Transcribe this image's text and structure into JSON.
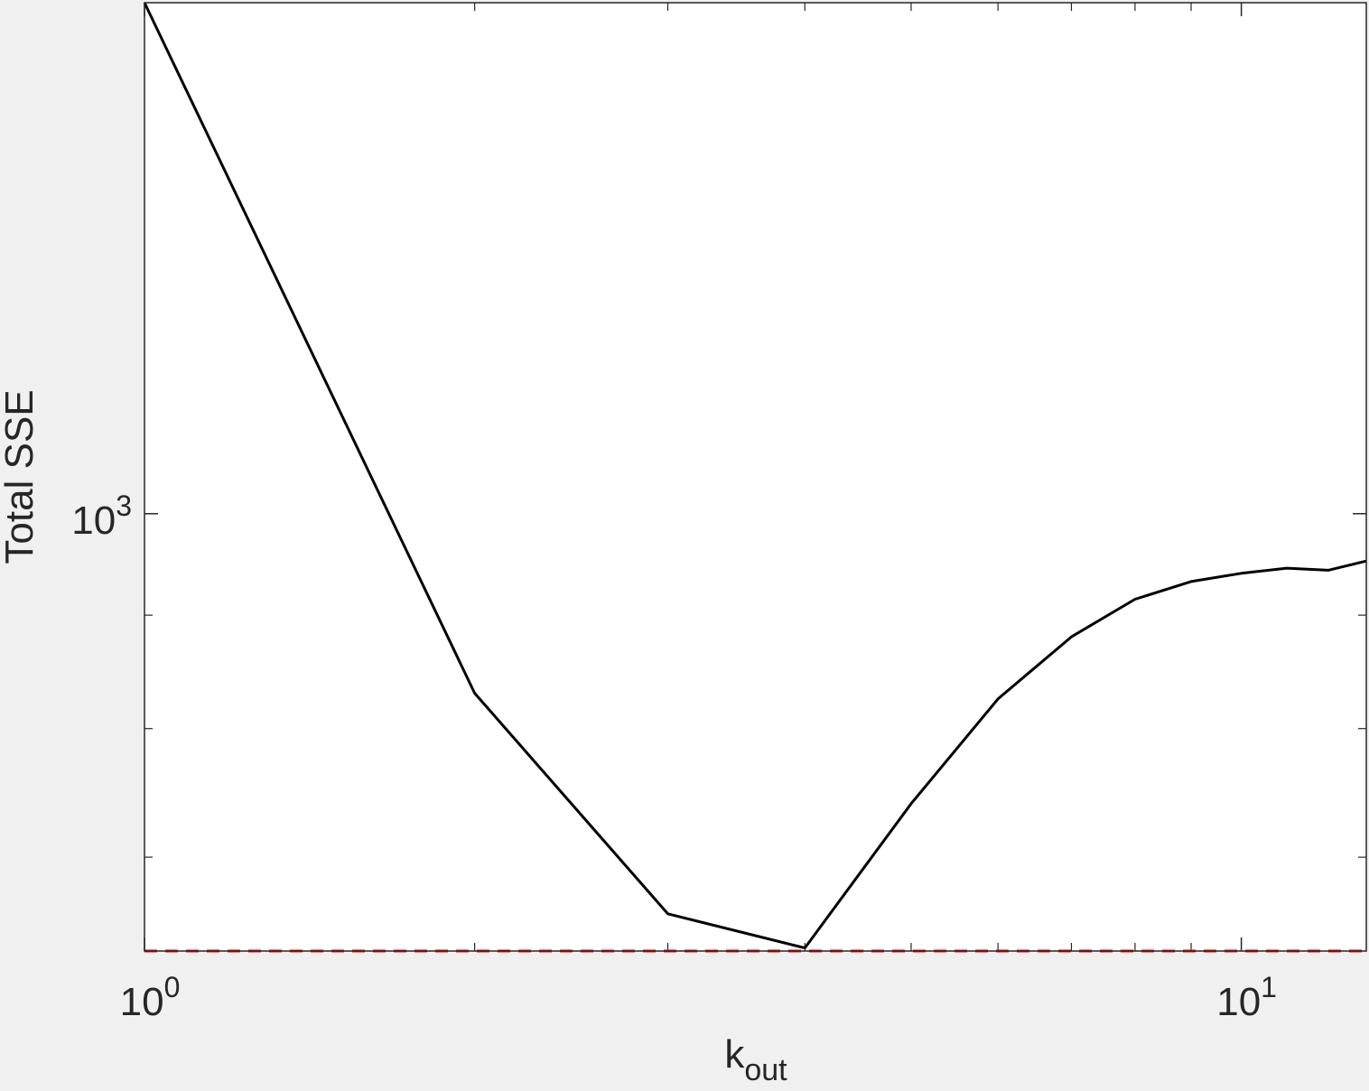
{
  "chart_data": {
    "type": "line",
    "title": "",
    "xlabel": "k",
    "xlabel_subscript": "out",
    "ylabel": "Total SSE",
    "x_scale": "log",
    "y_scale": "log",
    "xlim": [
      1,
      13
    ],
    "ylim": [
      635,
      1700
    ],
    "x_ticks": [
      {
        "value": 1,
        "base": "10",
        "exp": "0"
      },
      {
        "value": 10,
        "base": "10",
        "exp": "1"
      }
    ],
    "y_ticks": [
      {
        "value": 1000,
        "base": "10",
        "exp": "3"
      }
    ],
    "grid": false,
    "series": [
      {
        "color": "#000000",
        "style": "solid",
        "x": [
          1,
          2,
          3,
          4,
          5,
          6,
          7,
          8,
          9,
          10,
          11,
          12,
          13
        ],
        "y": [
          1700,
          830,
          660,
          637,
          740,
          825,
          880,
          915,
          932,
          940,
          945,
          943,
          952
        ]
      },
      {
        "color": "#ff0000",
        "style": "dashed",
        "x": [
          1,
          13
        ],
        "y": [
          635,
          635
        ]
      }
    ]
  }
}
